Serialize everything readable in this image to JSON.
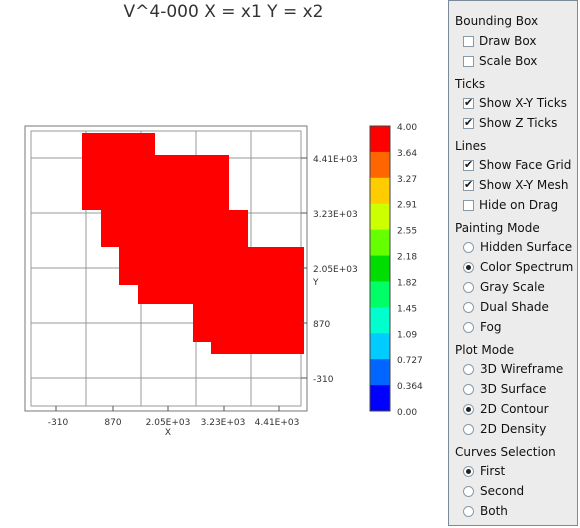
{
  "plot": {
    "title": "V^4-000 X = x1 Y = x2",
    "x_axis_label": "X",
    "y_axis_label": "Y",
    "x_ticks": [
      "-310",
      "870",
      "2.05E+03",
      "3.23E+03",
      "4.41E+03"
    ],
    "y_ticks": [
      "4.41E+03",
      "3.23E+03",
      "2.05E+03",
      "870",
      "-310"
    ],
    "colorbar_labels": [
      "4.00",
      "3.64",
      "3.27",
      "2.91",
      "2.55",
      "2.18",
      "1.82",
      "1.45",
      "1.09",
      "0.727",
      "0.364",
      "0.00"
    ],
    "colorbar_colors": [
      "#ff0000",
      "#ff6600",
      "#ffcc00",
      "#ccff00",
      "#66ff00",
      "#00dd00",
      "#00ff66",
      "#00ffcc",
      "#00ccff",
      "#0066ff",
      "#0000ff"
    ],
    "fill_color": "#ff0000"
  },
  "panel": {
    "bounding_box": {
      "title": "Bounding Box",
      "draw_box": "Draw Box",
      "scale_box": "Scale Box",
      "draw_box_checked": false,
      "scale_box_checked": false
    },
    "ticks": {
      "title": "Ticks",
      "show_xy_ticks": "Show X-Y Ticks",
      "show_z_ticks": "Show Z Ticks",
      "show_xy_ticks_checked": true,
      "show_z_ticks_checked": true
    },
    "lines": {
      "title": "Lines",
      "show_face_grid": "Show Face Grid",
      "show_xy_mesh": "Show X-Y Mesh",
      "hide_on_drag": "Hide on Drag",
      "show_face_grid_checked": true,
      "show_xy_mesh_checked": true,
      "hide_on_drag_checked": false
    },
    "painting_mode": {
      "title": "Painting Mode",
      "options": [
        "Hidden Surface",
        "Color Spectrum",
        "Gray Scale",
        "Dual Shade",
        "Fog"
      ],
      "selected": "Color Spectrum"
    },
    "plot_mode": {
      "title": "Plot Mode",
      "options": [
        "3D Wireframe",
        "3D Surface",
        "2D Contour",
        "2D Density"
      ],
      "selected": "2D Contour"
    },
    "curves_selection": {
      "title": "Curves Selection",
      "options": [
        "First",
        "Second",
        "Both"
      ],
      "selected": "First"
    }
  }
}
